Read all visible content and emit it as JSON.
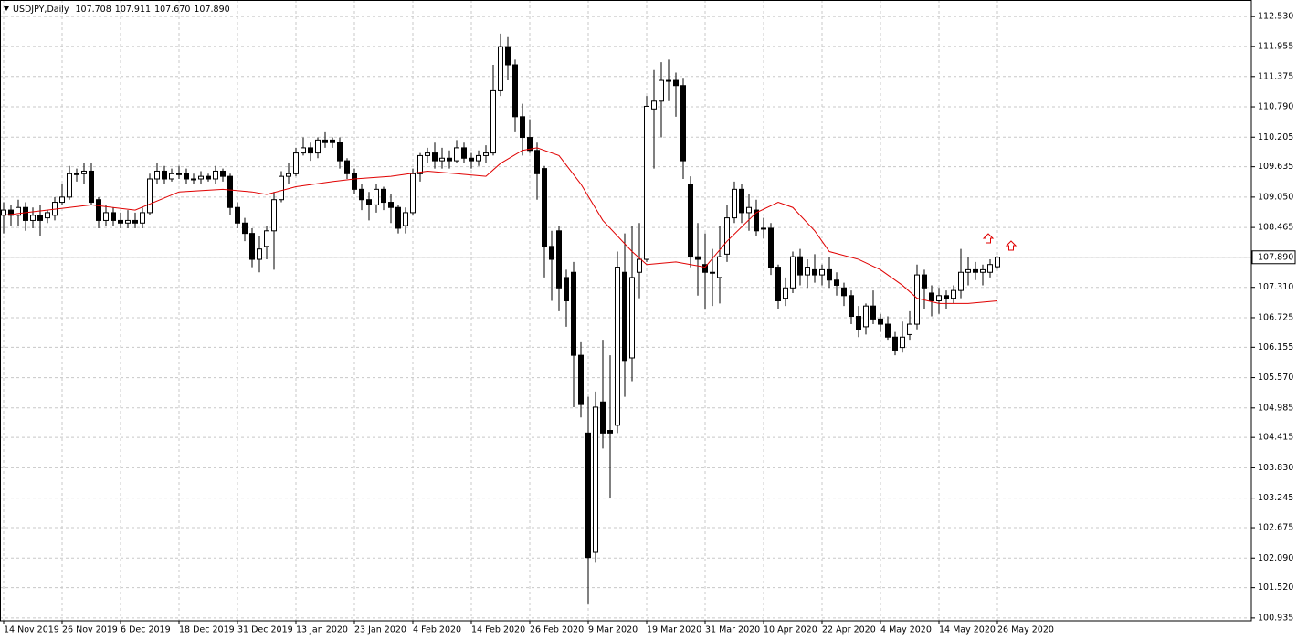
{
  "chart_data": {
    "type": "candlestick",
    "title": "USDJPY,Daily",
    "header_values": [
      "107.708",
      "107.911",
      "107.670",
      "107.890"
    ],
    "categories": [
      "14 Nov 2019",
      null,
      null,
      null,
      null,
      null,
      null,
      null,
      "26 Nov 2019",
      null,
      null,
      null,
      null,
      null,
      null,
      null,
      "6 Dec 2019",
      null,
      null,
      null,
      null,
      null,
      null,
      null,
      "18 Dec 2019",
      null,
      null,
      null,
      null,
      null,
      null,
      null,
      "31 Dec 2019",
      null,
      null,
      null,
      null,
      null,
      null,
      null,
      "13 Jan 2020",
      null,
      null,
      null,
      null,
      null,
      null,
      null,
      "23 Jan 2020",
      null,
      null,
      null,
      null,
      null,
      null,
      null,
      "4 Feb 2020",
      null,
      null,
      null,
      null,
      null,
      null,
      null,
      "14 Feb 2020",
      null,
      null,
      null,
      null,
      null,
      null,
      null,
      "26 Feb 2020",
      null,
      null,
      null,
      null,
      null,
      null,
      null,
      "9 Mar 2020",
      null,
      null,
      null,
      null,
      null,
      null,
      null,
      "19 Mar 2020",
      null,
      null,
      null,
      null,
      null,
      null,
      null,
      "31 Mar 2020",
      null,
      null,
      null,
      null,
      null,
      null,
      null,
      "10 Apr 2020",
      null,
      null,
      null,
      null,
      null,
      null,
      null,
      "22 Apr 2020",
      null,
      null,
      null,
      null,
      null,
      null,
      null,
      "4 May 2020",
      null,
      null,
      null,
      null,
      null,
      null,
      null,
      "14 May 2020",
      null,
      null,
      null,
      null,
      null,
      null,
      null,
      "26 May 2020"
    ],
    "open": [
      108.7,
      108.8,
      108.7,
      108.85,
      108.6,
      108.7,
      108.65,
      108.7,
      108.95,
      109.05,
      109.5,
      109.5,
      109.55,
      109.0,
      108.6,
      108.75,
      108.6,
      108.55,
      108.6,
      108.55,
      108.75,
      109.4,
      109.55,
      109.4,
      109.5,
      109.5,
      109.4,
      109.4,
      109.45,
      109.4,
      109.55,
      109.45,
      108.85,
      108.55,
      108.35,
      107.85,
      108.1,
      108.4,
      109.0,
      109.45,
      109.5,
      109.9,
      110.0,
      109.9,
      110.15,
      110.15,
      110.1,
      109.75,
      109.5,
      109.2,
      109.0,
      108.9,
      109.2,
      108.95,
      108.85,
      108.5,
      108.75,
      109.5,
      109.85,
      109.9,
      109.75,
      109.8,
      109.75,
      110.0,
      109.8,
      109.75,
      109.85,
      109.9,
      111.1,
      111.95,
      111.6,
      110.6,
      110.2,
      109.95,
      109.6,
      108.1,
      108.4,
      107.5,
      107.6,
      106.0,
      104.5,
      102.2,
      105.1,
      104.55,
      104.65,
      107.6,
      105.95,
      107.6,
      107.85,
      110.75,
      110.9,
      111.3,
      111.3,
      111.2,
      109.3,
      107.9,
      107.75,
      107.6,
      107.5,
      107.95,
      108.65,
      109.2,
      108.75,
      108.8,
      108.45,
      108.45,
      107.7,
      107.1,
      107.3,
      107.9,
      107.55,
      107.65,
      107.55,
      107.65,
      107.45,
      107.3,
      107.15,
      106.75,
      106.55,
      106.95,
      106.7,
      106.6,
      106.35,
      106.15,
      106.4,
      106.6,
      107.55,
      107.2,
      107.05,
      107.15,
      107.1,
      107.25,
      107.6,
      107.65,
      107.6,
      107.6,
      107.708
    ],
    "high": [
      108.95,
      108.9,
      109.0,
      108.95,
      108.85,
      108.9,
      108.8,
      109.05,
      109.3,
      109.65,
      109.6,
      109.7,
      109.7,
      109.05,
      108.9,
      108.85,
      108.75,
      108.8,
      108.75,
      108.85,
      109.5,
      109.7,
      109.65,
      109.6,
      109.65,
      109.6,
      109.5,
      109.55,
      109.5,
      109.65,
      109.6,
      109.5,
      108.95,
      108.65,
      108.45,
      108.3,
      108.5,
      109.15,
      109.55,
      109.7,
      110.0,
      110.2,
      110.1,
      110.2,
      110.3,
      110.2,
      110.2,
      109.8,
      109.6,
      109.3,
      109.15,
      109.3,
      109.25,
      109.1,
      108.9,
      108.85,
      109.6,
      109.9,
      110.0,
      110.1,
      110.0,
      109.95,
      110.15,
      110.1,
      109.9,
      109.95,
      110.05,
      111.6,
      112.2,
      112.15,
      111.7,
      110.85,
      110.55,
      110.1,
      109.65,
      108.4,
      108.5,
      107.65,
      107.8,
      106.25,
      105.2,
      105.3,
      106.3,
      106.0,
      108.0,
      108.35,
      108.5,
      108.55,
      111.0,
      111.5,
      111.65,
      111.7,
      111.45,
      111.35,
      109.45,
      108.55,
      108.35,
      108.05,
      108.5,
      108.9,
      109.35,
      109.3,
      109.1,
      109.0,
      108.65,
      108.55,
      107.75,
      107.5,
      108.0,
      108.05,
      107.85,
      107.95,
      107.75,
      107.9,
      107.6,
      107.4,
      107.25,
      106.95,
      107.0,
      107.25,
      106.8,
      106.75,
      106.45,
      106.65,
      106.85,
      107.75,
      107.65,
      107.35,
      107.3,
      107.25,
      107.35,
      108.05,
      107.9,
      107.8,
      107.75,
      107.85,
      107.911
    ],
    "low": [
      108.35,
      108.5,
      108.5,
      108.4,
      108.45,
      108.3,
      108.55,
      108.6,
      108.9,
      109.0,
      109.35,
      109.3,
      108.9,
      108.45,
      108.5,
      108.5,
      108.45,
      108.45,
      108.45,
      108.45,
      108.7,
      109.3,
      109.3,
      109.35,
      109.4,
      109.3,
      109.3,
      109.3,
      109.35,
      109.3,
      109.35,
      108.7,
      108.45,
      108.2,
      107.7,
      107.6,
      107.85,
      107.65,
      108.95,
      109.3,
      109.45,
      109.85,
      109.75,
      109.8,
      110.0,
      110.0,
      109.6,
      109.4,
      109.1,
      108.8,
      108.6,
      108.75,
      108.8,
      108.55,
      108.35,
      108.35,
      108.7,
      109.35,
      109.7,
      109.6,
      109.6,
      109.6,
      109.7,
      109.7,
      109.6,
      109.65,
      109.7,
      109.85,
      111.0,
      111.3,
      110.3,
      109.85,
      109.9,
      109.0,
      107.5,
      107.05,
      106.85,
      106.55,
      105.0,
      104.8,
      101.2,
      102.0,
      104.2,
      103.25,
      104.5,
      105.2,
      105.5,
      107.1,
      107.8,
      109.6,
      110.2,
      110.9,
      110.6,
      109.4,
      107.7,
      107.15,
      106.9,
      106.95,
      107.0,
      107.8,
      108.55,
      108.55,
      108.4,
      108.3,
      108.25,
      107.55,
      106.9,
      106.95,
      107.2,
      107.35,
      107.3,
      107.4,
      107.35,
      107.3,
      107.15,
      106.95,
      106.6,
      106.35,
      106.4,
      106.6,
      106.45,
      106.3,
      106.0,
      106.05,
      106.3,
      106.5,
      106.9,
      106.75,
      106.8,
      106.9,
      107.0,
      107.1,
      107.35,
      107.45,
      107.35,
      107.5,
      107.67
    ],
    "close": [
      108.8,
      108.7,
      108.85,
      108.6,
      108.7,
      108.6,
      108.75,
      108.95,
      109.05,
      109.5,
      109.5,
      109.55,
      108.95,
      108.6,
      108.75,
      108.6,
      108.55,
      108.6,
      108.55,
      108.75,
      109.4,
      109.55,
      109.4,
      109.5,
      109.5,
      109.4,
      109.4,
      109.45,
      109.4,
      109.55,
      109.45,
      108.85,
      108.55,
      108.35,
      107.85,
      108.05,
      108.4,
      109.0,
      109.45,
      109.5,
      109.9,
      110.0,
      109.9,
      110.15,
      110.1,
      110.1,
      109.75,
      109.5,
      109.2,
      109.0,
      108.9,
      109.2,
      108.95,
      108.85,
      108.45,
      108.75,
      109.5,
      109.85,
      109.9,
      109.75,
      109.8,
      109.75,
      110.0,
      109.8,
      109.75,
      109.85,
      109.9,
      111.1,
      111.95,
      111.6,
      110.6,
      110.2,
      109.95,
      109.5,
      108.1,
      107.85,
      107.3,
      107.05,
      106.0,
      105.05,
      102.1,
      105.0,
      104.5,
      104.5,
      107.7,
      105.9,
      107.5,
      107.85,
      110.8,
      110.9,
      111.3,
      111.3,
      111.2,
      109.75,
      107.9,
      107.85,
      107.6,
      107.6,
      107.9,
      108.65,
      109.2,
      108.75,
      108.85,
      108.4,
      108.45,
      107.7,
      107.05,
      107.3,
      107.9,
      107.55,
      107.7,
      107.55,
      107.65,
      107.45,
      107.35,
      107.15,
      106.75,
      106.5,
      106.95,
      106.7,
      106.6,
      106.35,
      106.1,
      106.35,
      106.6,
      107.55,
      107.3,
      107.05,
      107.15,
      107.1,
      107.25,
      107.6,
      107.65,
      107.6,
      107.65,
      107.75,
      107.89
    ],
    "up_color": "#ffffff",
    "down_color": "#000000",
    "ma": {
      "color": "#e00000",
      "x": [
        0,
        12,
        18,
        24,
        30,
        34,
        36,
        40,
        45,
        48,
        53,
        58,
        62,
        66,
        68,
        71,
        73,
        76,
        79,
        82,
        86,
        88,
        92,
        96,
        99,
        103,
        106,
        108,
        111,
        113,
        117,
        120,
        123,
        125,
        128,
        132,
        136
      ],
      "values": [
        108.7,
        108.9,
        108.8,
        109.15,
        109.2,
        109.15,
        109.1,
        109.25,
        109.35,
        109.4,
        109.45,
        109.55,
        109.5,
        109.45,
        109.7,
        109.95,
        110.0,
        109.85,
        109.3,
        108.6,
        108.0,
        107.75,
        107.8,
        107.7,
        108.2,
        108.75,
        108.95,
        108.85,
        108.4,
        108.0,
        107.85,
        107.65,
        107.35,
        107.1,
        107.0,
        107.0,
        107.05
      ]
    },
    "current_price": {
      "value": 107.89,
      "label": "107.890"
    },
    "ylim": [
      100.88,
      112.85
    ],
    "yticks": [
      {
        "value": 112.53,
        "label": "112.530"
      },
      {
        "value": 111.955,
        "label": "111.955"
      },
      {
        "value": 111.375,
        "label": "111.375"
      },
      {
        "value": 110.79,
        "label": "110.790"
      },
      {
        "value": 110.205,
        "label": "110.205"
      },
      {
        "value": 109.635,
        "label": "109.635"
      },
      {
        "value": 109.05,
        "label": "109.050"
      },
      {
        "value": 108.465,
        "label": "108.465"
      },
      {
        "value": 107.89,
        "label": "107.890"
      },
      {
        "value": 107.31,
        "label": "107.310"
      },
      {
        "value": 106.725,
        "label": "106.725"
      },
      {
        "value": 106.155,
        "label": "106.155"
      },
      {
        "value": 105.57,
        "label": "105.570"
      },
      {
        "value": 104.985,
        "label": "104.985"
      },
      {
        "value": 104.415,
        "label": "104.415"
      },
      {
        "value": 103.83,
        "label": "103.830"
      },
      {
        "value": 103.245,
        "label": "103.245"
      },
      {
        "value": 102.675,
        "label": "102.675"
      },
      {
        "value": 102.09,
        "label": "102.090"
      },
      {
        "value": 101.52,
        "label": "101.520"
      },
      {
        "value": 100.935,
        "label": "100.935"
      }
    ],
    "grid": true
  }
}
